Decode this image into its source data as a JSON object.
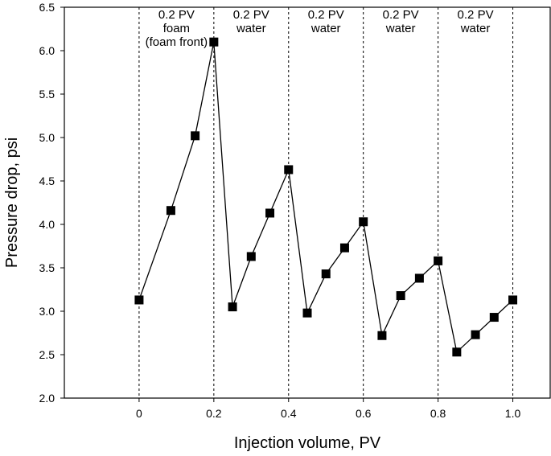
{
  "chart_data": {
    "type": "line",
    "title": "",
    "xlabel": "Injection volume, PV",
    "ylabel": "Pressure drop, psi",
    "xlim": [
      -0.2,
      1.1
    ],
    "ylim": [
      2.0,
      6.5
    ],
    "x_ticks": [
      0,
      0.2,
      0.4,
      0.6,
      0.8,
      1.0
    ],
    "x_tick_labels": [
      "0",
      "0.2",
      "0.4",
      "0.6",
      "0.8",
      "1.0"
    ],
    "y_ticks": [
      2.0,
      2.5,
      3.0,
      3.5,
      4.0,
      4.5,
      5.0,
      5.5,
      6.0,
      6.5
    ],
    "y_tick_labels": [
      "2.0",
      "2.5",
      "3.0",
      "3.5",
      "4.0",
      "4.5",
      "5.0",
      "5.5",
      "6.0",
      "6.5"
    ],
    "grid": false,
    "legend": "none",
    "series": [
      {
        "name": "Pressure drop",
        "marker": "square",
        "color": "#000000",
        "x": [
          0,
          0.085,
          0.15,
          0.2,
          0.25,
          0.3,
          0.35,
          0.4,
          0.45,
          0.5,
          0.55,
          0.6,
          0.65,
          0.7,
          0.75,
          0.8,
          0.85,
          0.9,
          0.95,
          1.0
        ],
        "y": [
          3.13,
          4.16,
          5.02,
          6.1,
          3.05,
          3.63,
          4.13,
          4.63,
          2.98,
          3.43,
          3.73,
          4.03,
          2.72,
          3.18,
          3.38,
          3.58,
          2.53,
          2.73,
          2.93,
          3.13
        ]
      }
    ],
    "dividers": [
      0,
      0.2,
      0.4,
      0.6,
      0.8,
      1.0
    ],
    "segments": [
      {
        "x_center": 0.1,
        "lines": [
          "0.2 PV",
          "foam",
          "(foam front)"
        ]
      },
      {
        "x_center": 0.3,
        "lines": [
          "0.2 PV",
          "water"
        ]
      },
      {
        "x_center": 0.5,
        "lines": [
          "0.2 PV",
          "water"
        ]
      },
      {
        "x_center": 0.7,
        "lines": [
          "0.2 PV",
          "water"
        ]
      },
      {
        "x_center": 0.9,
        "lines": [
          "0.2 PV",
          "water"
        ]
      }
    ]
  }
}
